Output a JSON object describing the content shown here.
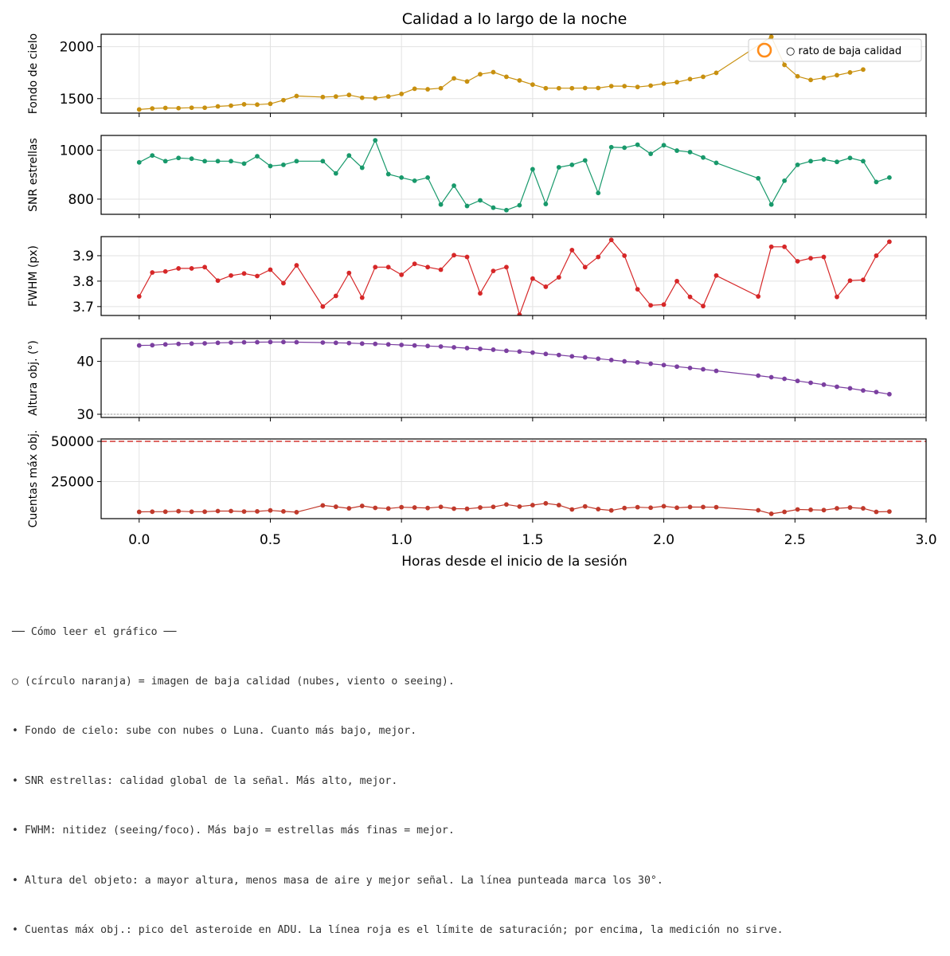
{
  "figure": {
    "title": "Calidad a lo largo de la noche",
    "xlabel": "Horas desde el inicio de la sesión",
    "xticks": [
      0.0,
      0.5,
      1.0,
      1.5,
      2.0,
      2.5,
      3.0
    ],
    "xtick_labels": [
      "0.0",
      "0.5",
      "1.0",
      "1.5",
      "2.0",
      "2.5",
      "3.0"
    ],
    "xlim": [
      -0.145,
      3.0
    ],
    "grid": true
  },
  "chart_data": [
    {
      "type": "line",
      "ylabel": "Fondo de cielo",
      "color": "#c8900f",
      "ylim": [
        1360,
        2120
      ],
      "yticks": [
        1500,
        2000
      ],
      "ytick_labels": [
        "1500",
        "2000"
      ],
      "legend": {
        "placement": "top-right",
        "label": "○ rato de baja calidad",
        "marker_color": "#ff8c1a"
      },
      "x": [
        0.0,
        0.05,
        0.1,
        0.15,
        0.2,
        0.25,
        0.3,
        0.35,
        0.4,
        0.45,
        0.5,
        0.55,
        0.6,
        0.7,
        0.75,
        0.8,
        0.85,
        0.9,
        0.95,
        1.0,
        1.05,
        1.1,
        1.15,
        1.2,
        1.25,
        1.3,
        1.35,
        1.4,
        1.45,
        1.5,
        1.55,
        1.6,
        1.65,
        1.7,
        1.75,
        1.8,
        1.85,
        1.9,
        1.95,
        2.0,
        2.05,
        2.1,
        2.15,
        2.2,
        2.41,
        2.46,
        2.51,
        2.56,
        2.61,
        2.66,
        2.71,
        2.76
      ],
      "y": [
        1395,
        1405,
        1410,
        1408,
        1412,
        1412,
        1425,
        1432,
        1445,
        1442,
        1450,
        1485,
        1525,
        1515,
        1520,
        1535,
        1508,
        1505,
        1520,
        1545,
        1595,
        1590,
        1600,
        1695,
        1665,
        1735,
        1755,
        1710,
        1675,
        1635,
        1600,
        1600,
        1600,
        1602,
        1602,
        1620,
        1620,
        1612,
        1625,
        1645,
        1658,
        1688,
        1710,
        1748,
        2095,
        1825,
        1715,
        1680,
        1700,
        1725,
        1752,
        1780
      ],
      "series_name": "Fondo de cielo"
    },
    {
      "type": "line",
      "ylabel": "SNR estrellas",
      "color": "#18996b",
      "ylim": [
        738,
        1060
      ],
      "yticks": [
        800,
        1000
      ],
      "ytick_labels": [
        "800",
        "1000"
      ],
      "x": [
        0.0,
        0.05,
        0.1,
        0.15,
        0.2,
        0.25,
        0.3,
        0.35,
        0.4,
        0.45,
        0.5,
        0.55,
        0.6,
        0.7,
        0.75,
        0.8,
        0.85,
        0.9,
        0.95,
        1.0,
        1.05,
        1.1,
        1.15,
        1.2,
        1.25,
        1.3,
        1.35,
        1.4,
        1.45,
        1.5,
        1.55,
        1.6,
        1.65,
        1.7,
        1.75,
        1.8,
        1.85,
        1.9,
        1.95,
        2.0,
        2.05,
        2.1,
        2.15,
        2.2,
        2.36,
        2.41,
        2.46,
        2.51,
        2.56,
        2.61,
        2.66,
        2.71,
        2.76,
        2.81,
        2.86
      ],
      "y": [
        950,
        978,
        955,
        968,
        965,
        955,
        955,
        955,
        945,
        975,
        935,
        940,
        955,
        955,
        905,
        978,
        928,
        1040,
        902,
        888,
        875,
        888,
        778,
        855,
        772,
        795,
        765,
        755,
        775,
        922,
        780,
        930,
        940,
        958,
        825,
        1012,
        1010,
        1022,
        985,
        1020,
        998,
        992,
        970,
        948,
        885,
        778,
        875,
        940,
        955,
        962,
        952,
        968,
        955,
        870,
        888
      ],
      "series_name": "SNR estrellas"
    },
    {
      "type": "line",
      "ylabel": "FWHM (px)",
      "color": "#d62728",
      "ylim": [
        3.665,
        3.975
      ],
      "yticks": [
        3.7,
        3.8,
        3.9
      ],
      "ytick_labels": [
        "3.7",
        "3.8",
        "3.9"
      ],
      "x": [
        0.0,
        0.05,
        0.1,
        0.15,
        0.2,
        0.25,
        0.3,
        0.35,
        0.4,
        0.45,
        0.5,
        0.55,
        0.6,
        0.7,
        0.75,
        0.8,
        0.85,
        0.9,
        0.95,
        1.0,
        1.05,
        1.1,
        1.15,
        1.2,
        1.25,
        1.3,
        1.35,
        1.4,
        1.45,
        1.5,
        1.55,
        1.6,
        1.65,
        1.7,
        1.75,
        1.8,
        1.85,
        1.9,
        1.95,
        2.0,
        2.05,
        2.1,
        2.15,
        2.2,
        2.36,
        2.41,
        2.46,
        2.51,
        2.56,
        2.61,
        2.66,
        2.71,
        2.76,
        2.81,
        2.86
      ],
      "y": [
        3.74,
        3.834,
        3.838,
        3.85,
        3.85,
        3.855,
        3.802,
        3.822,
        3.83,
        3.82,
        3.845,
        3.792,
        3.862,
        3.7,
        3.742,
        3.832,
        3.735,
        3.855,
        3.855,
        3.825,
        3.868,
        3.855,
        3.845,
        3.902,
        3.895,
        3.752,
        3.84,
        3.855,
        3.668,
        3.81,
        3.778,
        3.815,
        3.922,
        3.855,
        3.895,
        3.962,
        3.9,
        3.768,
        3.705,
        3.708,
        3.8,
        3.738,
        3.702,
        3.822,
        3.74,
        3.935,
        3.935,
        3.878,
        3.89,
        3.895,
        3.738,
        3.802,
        3.805,
        3.9,
        3.955
      ],
      "series_name": "FWHM (px)"
    },
    {
      "type": "line",
      "ylabel": "Altura obj. (°)",
      "color": "#7b3fa0",
      "ylim": [
        29.4,
        44.3
      ],
      "yticks": [
        30,
        40
      ],
      "ytick_labels": [
        "30",
        "40"
      ],
      "reference_line": {
        "y": 30,
        "style": "dotted",
        "color": "#999999"
      },
      "x": [
        0.0,
        0.05,
        0.1,
        0.15,
        0.2,
        0.25,
        0.3,
        0.35,
        0.4,
        0.45,
        0.5,
        0.55,
        0.6,
        0.7,
        0.75,
        0.8,
        0.85,
        0.9,
        0.95,
        1.0,
        1.05,
        1.1,
        1.15,
        1.2,
        1.25,
        1.3,
        1.35,
        1.4,
        1.45,
        1.5,
        1.55,
        1.6,
        1.65,
        1.7,
        1.75,
        1.8,
        1.85,
        1.9,
        1.95,
        2.0,
        2.05,
        2.1,
        2.15,
        2.2,
        2.36,
        2.41,
        2.46,
        2.51,
        2.56,
        2.61,
        2.66,
        2.71,
        2.76,
        2.81,
        2.86
      ],
      "y": [
        43.0,
        43.05,
        43.2,
        43.3,
        43.35,
        43.4,
        43.5,
        43.55,
        43.6,
        43.62,
        43.65,
        43.65,
        43.62,
        43.55,
        43.5,
        43.45,
        43.35,
        43.3,
        43.2,
        43.1,
        43.0,
        42.9,
        42.8,
        42.65,
        42.5,
        42.35,
        42.2,
        42.0,
        41.85,
        41.65,
        41.4,
        41.2,
        40.95,
        40.75,
        40.5,
        40.25,
        40.0,
        39.8,
        39.55,
        39.3,
        39.0,
        38.75,
        38.5,
        38.2,
        37.3,
        37.0,
        36.7,
        36.3,
        35.95,
        35.6,
        35.2,
        34.9,
        34.5,
        34.2,
        33.8
      ],
      "series_name": "Altura obj. (°)"
    },
    {
      "type": "line",
      "ylabel": "Cuentas máx obj.",
      "color": "#c0392b",
      "ylim": [
        2000,
        51500
      ],
      "yticks": [
        25000,
        50000
      ],
      "ytick_labels": [
        "25000",
        "50000"
      ],
      "reference_line": {
        "y": 50000,
        "style": "dashed",
        "color": "#d9534f"
      },
      "x": [
        0.0,
        0.05,
        0.1,
        0.15,
        0.2,
        0.25,
        0.3,
        0.35,
        0.4,
        0.45,
        0.5,
        0.55,
        0.6,
        0.7,
        0.75,
        0.8,
        0.85,
        0.9,
        0.95,
        1.0,
        1.05,
        1.1,
        1.15,
        1.2,
        1.25,
        1.3,
        1.35,
        1.4,
        1.45,
        1.5,
        1.55,
        1.6,
        1.65,
        1.7,
        1.75,
        1.8,
        1.85,
        1.9,
        1.95,
        2.0,
        2.05,
        2.1,
        2.15,
        2.2,
        2.36,
        2.41,
        2.46,
        2.51,
        2.56,
        2.61,
        2.66,
        2.71,
        2.76,
        2.81,
        2.86
      ],
      "y": [
        6200,
        6300,
        6300,
        6600,
        6300,
        6300,
        6700,
        6700,
        6400,
        6500,
        7100,
        6500,
        6000,
        10200,
        9400,
        8400,
        9900,
        8700,
        8300,
        9100,
        8900,
        8600,
        9300,
        8200,
        8100,
        8900,
        9300,
        10800,
        9500,
        10400,
        11500,
        10400,
        7700,
        9600,
        7900,
        7100,
        8600,
        9100,
        8800,
        9700,
        8800,
        9200,
        9200,
        9100,
        7200,
        5000,
        6200,
        7700,
        7500,
        7300,
        8400,
        8900,
        8400,
        6200,
        6400
      ],
      "series_name": "Cuentas máx obj."
    }
  ],
  "notes": [
    "── Cómo leer el gráfico ──",
    "○ (círculo naranja) = imagen de baja calidad (nubes, viento o seeing).",
    "• Fondo de cielo: sube con nubes o Luna. Cuanto más bajo, mejor.",
    "• SNR estrellas: calidad global de la señal. Más alto, mejor.",
    "• FWHM: nitidez (seeing/foco). Más bajo = estrellas más finas = mejor.",
    "• Altura del objeto: a mayor altura, menos masa de aire y mejor señal. La línea punteada marca los 30°.",
    "• Cuentas máx obj.: pico del asteroide en ADU. La línea roja es el límite de saturación; por encima, la medición no sirve."
  ]
}
